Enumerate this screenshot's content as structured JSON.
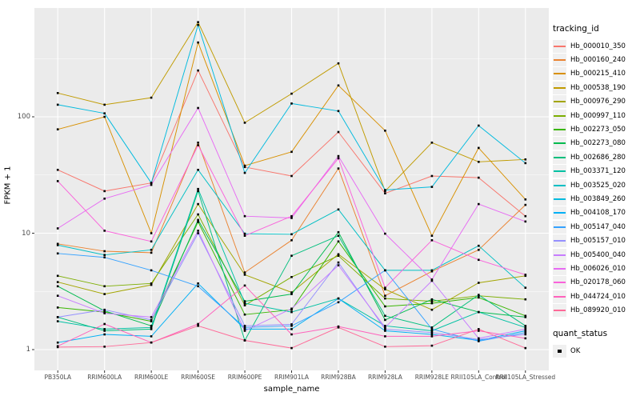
{
  "chart_data": {
    "type": "line",
    "title": "",
    "xlabel": "sample_name",
    "ylabel": "FPKM + 1",
    "y_scale": "log10",
    "ylim": [
      0.66,
      860
    ],
    "grid": "on",
    "panel_background": "#EBEBEB",
    "gridline_color": "#FFFFFF",
    "point_marker": {
      "shape": "square",
      "color": "#000000"
    },
    "y_ticks": [
      {
        "label": "1",
        "value": 1
      },
      {
        "label": "10",
        "value": 10
      },
      {
        "label": "100",
        "value": 100
      }
    ],
    "y_minor_ticks": [
      3.1623,
      31.623,
      316.23
    ],
    "categories": [
      "PB350LA",
      "RRIM600LA",
      "RRIM600LE",
      "RRIM600SE",
      "RRIM600PE",
      "RRIM901LA",
      "RRIM928BA",
      "RRIM928LA",
      "RRIM928LE",
      "RRII105LA_Control",
      "RRII105LA_Stressed"
    ],
    "series": [
      {
        "name": "Hb_000010_350",
        "color": "#F8766D",
        "values": [
          35,
          23,
          27,
          250,
          37,
          31,
          74,
          22,
          31,
          30,
          14
        ]
      },
      {
        "name": "Hb_000160_240",
        "color": "#EA8331",
        "values": [
          8.1,
          7.0,
          6.8,
          60,
          4.6,
          8.7,
          36,
          2.9,
          4.7,
          7.2,
          17.5
        ]
      },
      {
        "name": "Hb_000215_410",
        "color": "#D89000",
        "values": [
          78,
          100,
          10,
          435,
          38,
          50,
          186,
          76,
          9.5,
          54,
          19.5
        ]
      },
      {
        "name": "Hb_000538_190",
        "color": "#C09B00",
        "values": [
          160,
          127,
          146,
          650,
          89,
          158,
          288,
          23,
          60,
          41,
          43
        ]
      },
      {
        "name": "Hb_000976_290",
        "color": "#A3A500",
        "values": [
          3.8,
          3.0,
          3.6,
          17.8,
          4.4,
          3.1,
          6.6,
          3.3,
          2.2,
          3.75,
          4.3
        ]
      },
      {
        "name": "Hb_000997_110",
        "color": "#7CAE00",
        "values": [
          4.3,
          3.5,
          3.7,
          14.5,
          2.4,
          4.2,
          6.4,
          2.75,
          2.6,
          2.9,
          2.7
        ]
      },
      {
        "name": "Hb_002273_050",
        "color": "#39B600",
        "values": [
          2.3,
          2.1,
          1.75,
          12.5,
          2.0,
          2.2,
          8.5,
          2.35,
          2.5,
          2.8,
          1.95
        ]
      },
      {
        "name": "Hb_002273_080",
        "color": "#00BB4E",
        "values": [
          3.5,
          2.15,
          1.6,
          13,
          2.6,
          3.0,
          10.2,
          1.8,
          2.7,
          2.1,
          1.9
        ]
      },
      {
        "name": "Hb_002686_280",
        "color": "#00BF7D",
        "values": [
          1.9,
          1.45,
          1.5,
          23,
          1.2,
          6.4,
          9.5,
          1.95,
          1.55,
          2.95,
          1.6
        ]
      },
      {
        "name": "Hb_003371_120",
        "color": "#00C1A3",
        "values": [
          1.75,
          1.5,
          1.55,
          24,
          2.5,
          2.1,
          2.75,
          1.6,
          1.45,
          2.1,
          1.55
        ]
      },
      {
        "name": "Hb_003525_020",
        "color": "#00BFC4",
        "values": [
          7.9,
          6.5,
          7.2,
          35,
          9.9,
          9.8,
          16,
          4.8,
          4.8,
          7.8,
          3.4
        ]
      },
      {
        "name": "Hb_003849_260",
        "color": "#00BADE",
        "values": [
          127,
          107,
          27,
          615,
          33,
          130,
          112,
          23.5,
          25,
          84,
          40
        ]
      },
      {
        "name": "Hb_004108_170",
        "color": "#00B0F6",
        "values": [
          1.15,
          1.35,
          1.3,
          3.7,
          1.5,
          1.5,
          2.75,
          1.45,
          1.35,
          1.2,
          1.45
        ]
      },
      {
        "name": "Hb_005147_040",
        "color": "#35A2FF",
        "values": [
          6.7,
          6.2,
          4.8,
          3.5,
          1.55,
          1.6,
          2.55,
          4.8,
          1.5,
          1.18,
          1.4
        ]
      },
      {
        "name": "Hb_005157_010",
        "color": "#9590FF",
        "values": [
          1.9,
          2.2,
          1.8,
          10,
          1.6,
          1.65,
          5.6,
          1.5,
          1.4,
          1.22,
          1.35
        ]
      },
      {
        "name": "Hb_005400_040",
        "color": "#C77CFF",
        "values": [
          2.9,
          2.05,
          1.9,
          10.5,
          1.45,
          2.25,
          5.3,
          1.55,
          3.9,
          1.25,
          1.5
        ]
      },
      {
        "name": "Hb_006026_010",
        "color": "#E76BF3",
        "values": [
          11,
          19.8,
          26,
          119,
          14,
          13.5,
          46,
          9.9,
          4.0,
          17.8,
          12.6
        ]
      },
      {
        "name": "Hb_020178_060",
        "color": "#FA62DB",
        "values": [
          28,
          10.5,
          8.5,
          57,
          9.5,
          14,
          44,
          3.4,
          8.7,
          5.9,
          4.4
        ]
      },
      {
        "name": "Hb_044724_010",
        "color": "#FF62BC",
        "values": [
          1.07,
          1.66,
          1.15,
          1.66,
          3.55,
          1.35,
          1.58,
          1.3,
          1.3,
          1.45,
          1.25
        ]
      },
      {
        "name": "Hb_089920_010",
        "color": "#FF6A98",
        "values": [
          1.05,
          1.06,
          1.15,
          1.6,
          1.2,
          1.03,
          1.55,
          1.06,
          1.08,
          1.5,
          1.03
        ]
      }
    ]
  },
  "legend": {
    "title": "tracking_id"
  },
  "quant_legend": {
    "title": "quant_status",
    "items": [
      {
        "label": "OK"
      }
    ]
  }
}
